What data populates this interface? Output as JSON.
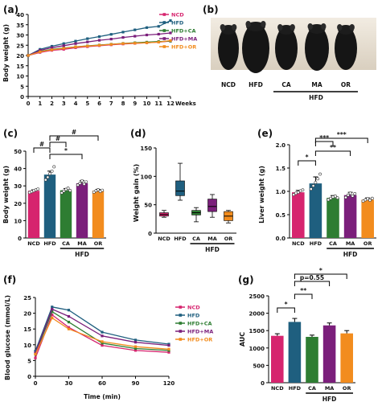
{
  "chart_data": [
    {
      "panel": "(a)",
      "type": "line",
      "xlabel": "Weeks",
      "ylabel": "Body weight (g)",
      "xlim": [
        0,
        12
      ],
      "ylim": [
        0,
        40
      ],
      "xticks": [
        0,
        1,
        2,
        3,
        4,
        5,
        6,
        7,
        8,
        9,
        10,
        11,
        12
      ],
      "yticks": [
        0,
        5,
        10,
        15,
        20,
        25,
        30,
        35,
        40
      ],
      "x": [
        0,
        1,
        2,
        3,
        4,
        5,
        6,
        7,
        8,
        9,
        10,
        11,
        12
      ],
      "legend_position": "top-right",
      "series": [
        {
          "name": "NCD",
          "color": "#d6246e",
          "values": [
            20,
            21.5,
            22.5,
            23,
            23.8,
            24.3,
            24.8,
            25.2,
            25.6,
            25.9,
            26.2,
            26.5,
            27
          ]
        },
        {
          "name": "HFD",
          "color": "#1f5f7f",
          "values": [
            20,
            23,
            24.5,
            25.8,
            27,
            28.2,
            29.2,
            30.3,
            31.4,
            32.5,
            33.6,
            34.2,
            37
          ]
        },
        {
          "name": "HFD+CA",
          "color": "#2e7d32",
          "values": [
            20,
            22,
            23,
            23.6,
            24.2,
            24.7,
            25.1,
            25.5,
            25.9,
            26.2,
            26.5,
            26.8,
            27
          ]
        },
        {
          "name": "HFD+MA",
          "color": "#7b1f7b",
          "values": [
            20,
            22.5,
            23.8,
            24.8,
            25.8,
            26.6,
            27.4,
            28,
            28.8,
            29.4,
            30,
            30.4,
            31
          ]
        },
        {
          "name": "HFD+OR",
          "color": "#f28c1e",
          "values": [
            20,
            21.8,
            22.8,
            23.5,
            24.2,
            24.6,
            25,
            25.4,
            25.8,
            26,
            26.2,
            26.5,
            27.3
          ]
        }
      ]
    },
    {
      "panel": "(b)",
      "type": "image",
      "labels": [
        "NCD",
        "HFD",
        "CA",
        "MA",
        "OR"
      ],
      "group_label": "HFD"
    },
    {
      "panel": "(c)",
      "type": "bar",
      "ylabel": "Body weight (g)",
      "ylim": [
        0,
        50
      ],
      "yticks": [
        0,
        10,
        20,
        30,
        40,
        50
      ],
      "categories": [
        "NCD",
        "HFD",
        "CA",
        "MA",
        "OR"
      ],
      "values": [
        27.2,
        36.5,
        27.5,
        31.5,
        27.2
      ],
      "errors": [
        0.5,
        2.0,
        1.0,
        1.5,
        0.8
      ],
      "colors": [
        "#d6246e",
        "#1f5f7f",
        "#2e7d32",
        "#7b1f7b",
        "#f28c1e"
      ],
      "group_label": "HFD",
      "significance": [
        "#",
        "#",
        "*",
        "#"
      ]
    },
    {
      "panel": "(d)",
      "type": "box",
      "ylabel": "Weight gain (%)",
      "ylim": [
        0,
        150
      ],
      "yticks": [
        0,
        50,
        100,
        150
      ],
      "categories": [
        "NCD",
        "HFD",
        "CA",
        "MA",
        "OR"
      ],
      "colors": [
        "#d6246e",
        "#1f5f7f",
        "#2e7d32",
        "#7b1f7b",
        "#f28c1e"
      ],
      "boxes": [
        {
          "min": 28,
          "q1": 30,
          "median": 33,
          "q3": 36,
          "max": 40
        },
        {
          "min": 58,
          "q1": 66,
          "median": 74,
          "q3": 92,
          "max": 123
        },
        {
          "min": 20,
          "q1": 32,
          "median": 36,
          "q3": 40,
          "max": 45
        },
        {
          "min": 28,
          "q1": 38,
          "median": 47,
          "q3": 60,
          "max": 68
        },
        {
          "min": 18,
          "q1": 22,
          "median": 30,
          "q3": 38,
          "max": 40
        }
      ],
      "group_label": "HFD"
    },
    {
      "panel": "(e)",
      "type": "bar",
      "ylabel": "Liver weight (g)",
      "ylim": [
        0.0,
        2.0
      ],
      "yticks": [
        "0.0",
        "0.5",
        "1.0",
        "1.5",
        "2.0"
      ],
      "categories": [
        "NCD",
        "HFD",
        "CA",
        "MA",
        "OR"
      ],
      "values": [
        0.98,
        1.17,
        0.86,
        0.92,
        0.82
      ],
      "errors": [
        0.04,
        0.14,
        0.05,
        0.06,
        0.04
      ],
      "colors": [
        "#d6246e",
        "#1f5f7f",
        "#2e7d32",
        "#7b1f7b",
        "#f28c1e"
      ],
      "group_label": "HFD",
      "significance": [
        "*",
        "***",
        "**",
        "***"
      ]
    },
    {
      "panel": "(f)",
      "type": "line",
      "xlabel": "Time (min)",
      "ylabel": "Blood glucose (mmol/L)",
      "xlim": [
        0,
        120
      ],
      "ylim": [
        0,
        25
      ],
      "xticks": [
        0,
        30,
        60,
        90,
        120
      ],
      "yticks": [
        0,
        5,
        10,
        15,
        20,
        25
      ],
      "x": [
        0,
        15,
        30,
        60,
        90,
        120
      ],
      "legend_position": "right",
      "series": [
        {
          "name": "NCD",
          "color": "#d6246e",
          "values": [
            5.8,
            19.5,
            15.5,
            9.8,
            8.2,
            7.6
          ]
        },
        {
          "name": "HFD",
          "color": "#1f5f7f",
          "values": [
            8.0,
            22.0,
            21.0,
            14.0,
            11.5,
            10.2
          ]
        },
        {
          "name": "HFD+CA",
          "color": "#2e7d32",
          "values": [
            7.0,
            20.5,
            17.2,
            10.5,
            8.8,
            8.2
          ]
        },
        {
          "name": "HFD+MA",
          "color": "#7b1f7b",
          "values": [
            7.4,
            21.3,
            19.0,
            12.8,
            10.8,
            9.8
          ]
        },
        {
          "name": "HFD+OR",
          "color": "#f28c1e",
          "values": [
            7.0,
            18.5,
            15.0,
            11.0,
            9.4,
            8.6
          ]
        }
      ]
    },
    {
      "panel": "(g)",
      "type": "bar",
      "ylabel": "AUC",
      "ylim": [
        0,
        2500
      ],
      "yticks": [
        0,
        500,
        1000,
        1500,
        2000,
        2500
      ],
      "categories": [
        "NCD",
        "HFD",
        "CA",
        "MA",
        "OR"
      ],
      "values": [
        1350,
        1750,
        1320,
        1650,
        1420
      ],
      "errors": [
        60,
        100,
        50,
        70,
        80
      ],
      "colors": [
        "#d6246e",
        "#1f5f7f",
        "#2e7d32",
        "#7b1f7b",
        "#f28c1e"
      ],
      "group_label": "HFD",
      "significance": [
        "*",
        "**",
        "p=0.55",
        "*"
      ]
    }
  ]
}
